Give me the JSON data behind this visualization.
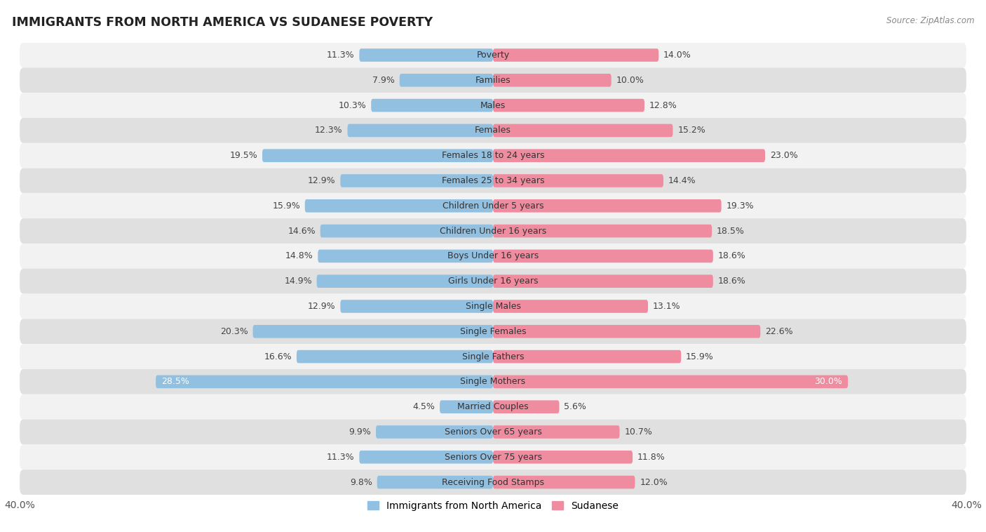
{
  "title": "IMMIGRANTS FROM NORTH AMERICA VS SUDANESE POVERTY",
  "source": "Source: ZipAtlas.com",
  "categories": [
    "Poverty",
    "Families",
    "Males",
    "Females",
    "Females 18 to 24 years",
    "Females 25 to 34 years",
    "Children Under 5 years",
    "Children Under 16 years",
    "Boys Under 16 years",
    "Girls Under 16 years",
    "Single Males",
    "Single Females",
    "Single Fathers",
    "Single Mothers",
    "Married Couples",
    "Seniors Over 65 years",
    "Seniors Over 75 years",
    "Receiving Food Stamps"
  ],
  "left_values": [
    11.3,
    7.9,
    10.3,
    12.3,
    19.5,
    12.9,
    15.9,
    14.6,
    14.8,
    14.9,
    12.9,
    20.3,
    16.6,
    28.5,
    4.5,
    9.9,
    11.3,
    9.8
  ],
  "right_values": [
    14.0,
    10.0,
    12.8,
    15.2,
    23.0,
    14.4,
    19.3,
    18.5,
    18.6,
    18.6,
    13.1,
    22.6,
    15.9,
    30.0,
    5.6,
    10.7,
    11.8,
    12.0
  ],
  "left_color": "#92c0e0",
  "right_color": "#f08ca0",
  "axis_max": 40.0,
  "background_color": "#ffffff",
  "row_bg_light": "#f2f2f2",
  "row_bg_dark": "#e0e0e0",
  "legend_left": "Immigrants from North America",
  "legend_right": "Sudanese",
  "bar_height": 0.52,
  "label_fontsize": 9.0,
  "cat_fontsize": 9.0
}
